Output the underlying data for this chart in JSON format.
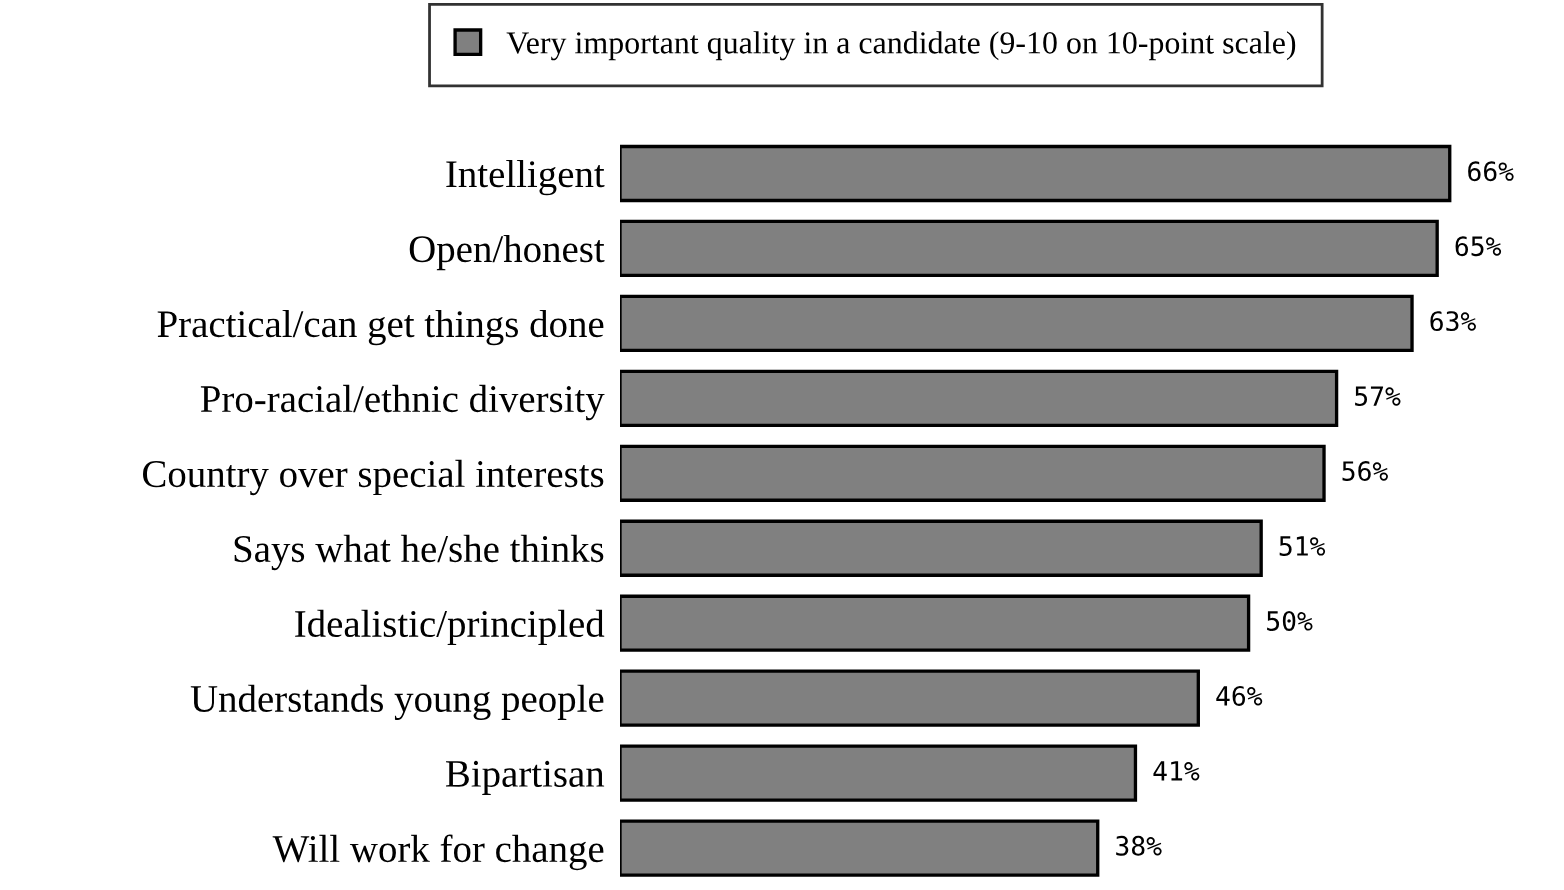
{
  "chart_data": {
    "type": "bar",
    "orientation": "horizontal",
    "legend": "top",
    "tick_labels": "y",
    "categories": [
      "Intelligent",
      "Open/honest",
      "Practical/can get things done",
      "Pro-racial/ethnic diversity",
      "Country over special interests",
      "Says what he/she thinks",
      "Idealistic/principled",
      "Understands young people",
      "Bipartisan",
      "Will work for change"
    ],
    "series": [
      {
        "name": "Very important quality in a candidate (9-10 on 10-point scale)",
        "color": "#808080",
        "values": [
          66,
          65,
          63,
          57,
          56,
          51,
          50,
          46,
          41,
          38
        ],
        "value_labels": [
          "66%",
          "65%",
          "63%",
          "57%",
          "56%",
          "51%",
          "50%",
          "46%",
          "41%",
          "38%"
        ]
      }
    ]
  }
}
